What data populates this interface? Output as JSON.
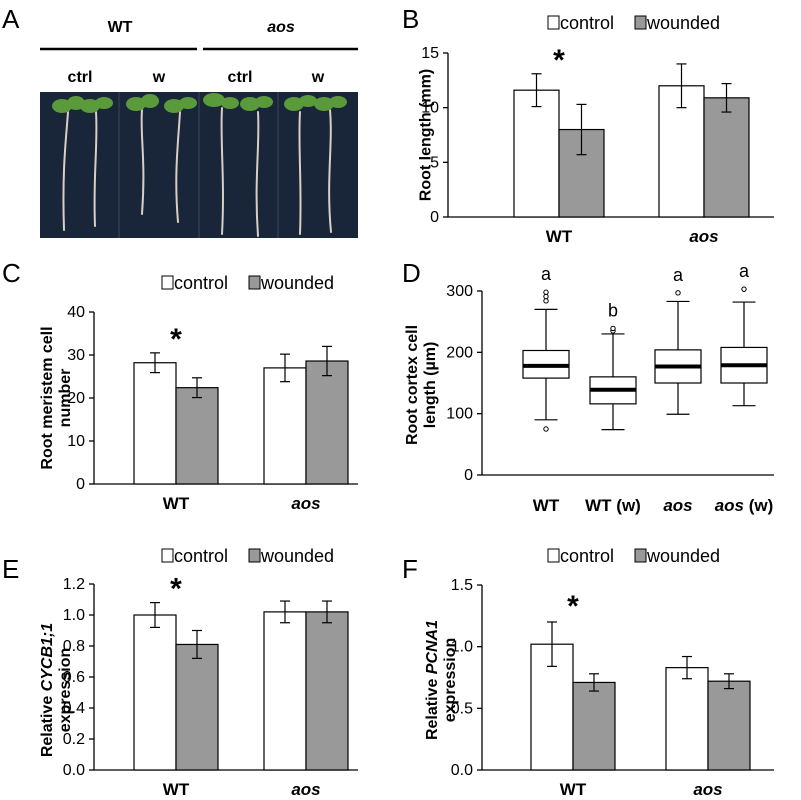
{
  "photo_panel": {
    "letter": "A",
    "groups": [
      "WT",
      "aos"
    ],
    "columns": [
      "ctrl",
      "w",
      "ctrl",
      "w"
    ]
  },
  "chart_data": [
    {
      "id": "B",
      "letter": "B",
      "type": "bar",
      "ylabel": "Root length (mm)",
      "categories": [
        "WT",
        "aos"
      ],
      "category_italic": [
        false,
        true
      ],
      "yticks": [
        "0",
        "5",
        "10",
        "15"
      ],
      "ylim": [
        0,
        15
      ],
      "series": [
        {
          "name": "control",
          "values": [
            11.6,
            12.0
          ],
          "errors": [
            1.5,
            2.0
          ],
          "color": "#ffffff"
        },
        {
          "name": "wounded",
          "values": [
            8.0,
            10.9
          ],
          "errors": [
            2.3,
            1.3
          ],
          "color": "#999999"
        }
      ],
      "significance": [
        "*",
        ""
      ],
      "legend": "top"
    },
    {
      "id": "C",
      "letter": "C",
      "type": "bar",
      "ylabel": "Root meristem cell number",
      "categories": [
        "WT",
        "aos"
      ],
      "category_italic": [
        false,
        true
      ],
      "yticks": [
        "0",
        "10",
        "20",
        "30",
        "40"
      ],
      "ylim": [
        0,
        40
      ],
      "series": [
        {
          "name": "control",
          "values": [
            28.2,
            27.0
          ],
          "errors": [
            2.3,
            3.2
          ],
          "color": "#ffffff"
        },
        {
          "name": "wounded",
          "values": [
            22.4,
            28.6
          ],
          "errors": [
            2.3,
            3.4
          ],
          "color": "#999999"
        }
      ],
      "significance": [
        "*",
        ""
      ],
      "legend": "top"
    },
    {
      "id": "D",
      "letter": "D",
      "type": "box",
      "ylabel": "Root cortex cell length (µm)",
      "categories": [
        "WT",
        "WT (w)",
        "aos",
        "aos (w)"
      ],
      "yticks": [
        "0",
        "100",
        "200",
        "300"
      ],
      "ylim": [
        0,
        300
      ],
      "boxes": [
        {
          "whisker_low": 90,
          "q1": 158,
          "median": 178,
          "q3": 203,
          "whisker_high": 270,
          "outliers": [
            75,
            284,
            291,
            298
          ],
          "letter": "a"
        },
        {
          "whisker_low": 74,
          "q1": 116,
          "median": 139,
          "q3": 160,
          "whisker_high": 230,
          "outliers": [
            235,
            239
          ],
          "letter": "b"
        },
        {
          "whisker_low": 99,
          "q1": 150,
          "median": 177,
          "q3": 204,
          "whisker_high": 283,
          "outliers": [
            297
          ],
          "letter": "a"
        },
        {
          "whisker_low": 113,
          "q1": 150,
          "median": 179,
          "q3": 208,
          "whisker_high": 282,
          "outliers": [
            303
          ],
          "letter": "a"
        }
      ]
    },
    {
      "id": "E",
      "letter": "E",
      "type": "bar",
      "ylabel_parts": [
        "Relative ",
        "CYCB1;1",
        " expression"
      ],
      "categories": [
        "WT",
        "aos"
      ],
      "category_italic": [
        false,
        true
      ],
      "yticks": [
        "0.0",
        "0.2",
        "0.4",
        "0.6",
        "0.8",
        "1.0",
        "1.2"
      ],
      "ylim": [
        0,
        1.2
      ],
      "series": [
        {
          "name": "control",
          "values": [
            1.0,
            1.02
          ],
          "errors": [
            0.08,
            0.07
          ],
          "color": "#ffffff"
        },
        {
          "name": "wounded",
          "values": [
            0.81,
            1.02
          ],
          "errors": [
            0.09,
            0.07
          ],
          "color": "#999999"
        }
      ],
      "significance": [
        "*",
        ""
      ],
      "legend": "top"
    },
    {
      "id": "F",
      "letter": "F",
      "type": "bar",
      "ylabel_parts": [
        "Relative ",
        "PCNA1",
        " expression"
      ],
      "categories": [
        "WT",
        "aos"
      ],
      "category_italic": [
        false,
        true
      ],
      "yticks": [
        "0.0",
        "0.5",
        "1.0",
        "1.5"
      ],
      "ylim": [
        0,
        1.5
      ],
      "series": [
        {
          "name": "control",
          "values": [
            1.02,
            0.83
          ],
          "errors": [
            0.18,
            0.09
          ],
          "color": "#ffffff"
        },
        {
          "name": "wounded",
          "values": [
            0.71,
            0.72
          ],
          "errors": [
            0.07,
            0.06
          ],
          "color": "#999999"
        }
      ],
      "significance": [
        "*",
        ""
      ],
      "legend": "top"
    }
  ]
}
